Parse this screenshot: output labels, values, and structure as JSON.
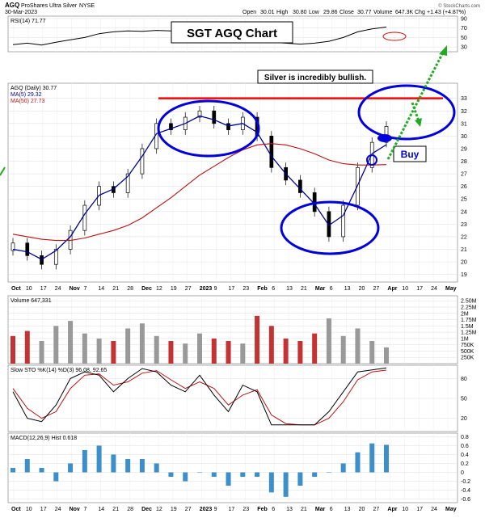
{
  "header": {
    "symbol": "AGQ",
    "name": "ProShares Ultra Silver",
    "exchange": "NYSE",
    "date": "30-Mar-2023",
    "open_label": "Open",
    "open": "30.01",
    "high_label": "High",
    "high": "30.80",
    "low_label": "Low",
    "low": "29.86",
    "close_label": "Close",
    "close": "30.77",
    "volume_label": "Volume",
    "volume": "647.3K",
    "chg_label": "Chg",
    "chg": "+1.43 (+4.87%)",
    "watermark": "© StockCharts.com"
  },
  "colors": {
    "price": "#000000",
    "ma50": "#000099",
    "ma_slow": "#bb1111",
    "rsi": "#000000",
    "annotation_blue": "#0000dd",
    "resistance": "#ff0000",
    "arrow_green": "#22aa22",
    "macd_hist": "#3d8fc9",
    "up_bar": "#999999",
    "down_bar": "#c33333"
  },
  "annotations": {
    "title": "SGT AGQ Chart",
    "silver_note": "Silver is incredibly bullish.",
    "buy": "Buy"
  },
  "chart_data": [
    {
      "type": "line",
      "panel": "rsi",
      "legend": "RSI(14) 71.77",
      "y_ticks": [
        30,
        50,
        70,
        90
      ],
      "ylim": [
        20,
        95
      ],
      "x": [
        "Oct 3",
        "Oct 10",
        "Oct 17",
        "Oct 24",
        "Oct 31",
        "Nov 7",
        "Nov 14",
        "Nov 21",
        "Nov 28",
        "Dec 5",
        "Dec 12",
        "Dec 19",
        "Dec 27",
        "Jan 3",
        "Jan 9",
        "Jan 17",
        "Jan 23",
        "Jan 30",
        "Feb 6",
        "Feb 13",
        "Feb 21",
        "Feb 27",
        "Mar 6",
        "Mar 13",
        "Mar 20",
        "Mar 27",
        "Mar 30"
      ],
      "series": [
        {
          "values": [
            35,
            38,
            34,
            40,
            45,
            50,
            58,
            62,
            64,
            63,
            65,
            64,
            66,
            64,
            65,
            62,
            63,
            60,
            40,
            38,
            36,
            38,
            42,
            50,
            62,
            68,
            72
          ]
        }
      ]
    },
    {
      "type": "candlestick",
      "panel": "price",
      "legend": "AGQ (Daily) 30.77",
      "legend_ma1": "MA(5) 29.32",
      "legend_ma2": "MA(50) 27.73",
      "y_ticks": [
        19,
        20,
        21,
        22,
        23,
        24,
        25,
        26,
        27,
        28,
        29,
        30,
        31,
        32,
        33
      ],
      "ylim": [
        18.4,
        34.2
      ],
      "x_ticks": [
        "Oct",
        "10",
        "17",
        "24",
        "Nov",
        "7",
        "14",
        "21",
        "28",
        "Dec",
        "12",
        "19",
        "27",
        "2023",
        "9",
        "17",
        "23",
        "Feb",
        "6",
        "13",
        "21",
        "Mar",
        "6",
        "13",
        "20",
        "27",
        "Apr",
        "10",
        "17",
        "24",
        "May"
      ],
      "x": [
        "Oct 3",
        "Oct 10",
        "Oct 17",
        "Oct 24",
        "Oct 31",
        "Nov 7",
        "Nov 14",
        "Nov 21",
        "Nov 28",
        "Dec 5",
        "Dec 12",
        "Dec 19",
        "Dec 27",
        "Jan 3",
        "Jan 9",
        "Jan 17",
        "Jan 23",
        "Jan 30",
        "Feb 6",
        "Feb 13",
        "Feb 21",
        "Feb 27",
        "Mar 6",
        "Mar 13",
        "Mar 20",
        "Mar 27",
        "Mar 30"
      ],
      "close": [
        21.5,
        20.5,
        19.8,
        21.0,
        22.5,
        24.5,
        26.0,
        25.5,
        27.0,
        29.0,
        31.0,
        30.5,
        31.5,
        32.0,
        31.0,
        30.5,
        31.5,
        30.0,
        27.5,
        26.5,
        25.5,
        24.0,
        22.0,
        24.5,
        27.5,
        29.5,
        30.77
      ],
      "ma_fast": [
        21.0,
        20.8,
        20.2,
        20.9,
        22.0,
        23.8,
        25.3,
        25.8,
        26.8,
        28.4,
        30.2,
        30.6,
        31.0,
        31.6,
        31.3,
        30.8,
        31.0,
        30.3,
        28.4,
        27.0,
        25.8,
        24.6,
        22.9,
        23.7,
        26.1,
        28.6,
        29.32
      ],
      "ma_slow": [
        22.2,
        22.0,
        21.8,
        21.7,
        21.7,
        21.9,
        22.2,
        22.5,
        22.9,
        23.5,
        24.3,
        25.1,
        26.0,
        26.9,
        27.6,
        28.3,
        28.9,
        29.3,
        29.4,
        29.3,
        29.0,
        28.6,
        28.1,
        27.8,
        27.7,
        27.7,
        27.73
      ],
      "resistance": 33.0
    },
    {
      "type": "bar",
      "panel": "volume",
      "legend": "Volume 647,331",
      "y_ticks": [
        "250K",
        "500K",
        "750K",
        "1M",
        "1.25M",
        "1.5M",
        "1.75M",
        "2M",
        "2.25M",
        "2.50M"
      ],
      "ylim": [
        0,
        2700000
      ],
      "x": [
        "Oct 3",
        "Oct 10",
        "Oct 17",
        "Oct 24",
        "Oct 31",
        "Nov 7",
        "Nov 14",
        "Nov 21",
        "Nov 28",
        "Dec 5",
        "Dec 12",
        "Dec 19",
        "Dec 27",
        "Jan 3",
        "Jan 9",
        "Jan 17",
        "Jan 23",
        "Jan 30",
        "Feb 6",
        "Feb 13",
        "Feb 21",
        "Feb 27",
        "Mar 6",
        "Mar 13",
        "Mar 20",
        "Mar 27",
        "Mar 30"
      ],
      "values": [
        1100000,
        1300000,
        900000,
        1500000,
        1700000,
        1200000,
        1000000,
        900000,
        1400000,
        1600000,
        1100000,
        900000,
        800000,
        1200000,
        1000000,
        900000,
        800000,
        1900000,
        1500000,
        1000000,
        900000,
        1200000,
        1800000,
        1100000,
        1400000,
        900000,
        647331
      ],
      "up": [
        false,
        false,
        true,
        true,
        true,
        true,
        true,
        false,
        true,
        true,
        true,
        false,
        true,
        true,
        false,
        false,
        true,
        false,
        false,
        false,
        false,
        false,
        true,
        true,
        true,
        true,
        true
      ]
    },
    {
      "type": "line",
      "panel": "stochastic",
      "legend": "Slow STO %K(14) %D(3) 96.08, 92.65",
      "y_ticks": [
        20,
        50,
        80
      ],
      "ylim": [
        0,
        100
      ],
      "x": [
        "Oct 3",
        "Oct 10",
        "Oct 17",
        "Oct 24",
        "Oct 31",
        "Nov 7",
        "Nov 14",
        "Nov 21",
        "Nov 28",
        "Dec 5",
        "Dec 12",
        "Dec 19",
        "Dec 27",
        "Jan 3",
        "Jan 9",
        "Jan 17",
        "Jan 23",
        "Jan 30",
        "Feb 6",
        "Feb 13",
        "Feb 21",
        "Feb 27",
        "Mar 6",
        "Mar 13",
        "Mar 20",
        "Mar 27",
        "Mar 30"
      ],
      "series": [
        {
          "values": [
            60,
            20,
            15,
            40,
            80,
            90,
            85,
            60,
            80,
            95,
            90,
            70,
            60,
            85,
            55,
            30,
            70,
            60,
            10,
            10,
            10,
            10,
            30,
            60,
            90,
            93,
            96.08
          ]
        },
        {
          "values": [
            65,
            35,
            20,
            30,
            65,
            85,
            87,
            70,
            75,
            88,
            92,
            78,
            65,
            75,
            65,
            40,
            55,
            63,
            25,
            12,
            10,
            10,
            20,
            45,
            78,
            90,
            92.65
          ]
        }
      ]
    },
    {
      "type": "bar",
      "panel": "macd",
      "legend": "MACD(12,26,9) Hist 0.618",
      "y_ticks": [
        -0.6,
        -0.4,
        -0.2,
        0,
        0.2,
        0.4,
        0.6,
        0.8
      ],
      "ylim": [
        -0.68,
        0.88
      ],
      "x": [
        "Oct 3",
        "Oct 10",
        "Oct 17",
        "Oct 24",
        "Oct 31",
        "Nov 7",
        "Nov 14",
        "Nov 21",
        "Nov 28",
        "Dec 5",
        "Dec 12",
        "Dec 19",
        "Dec 27",
        "Jan 3",
        "Jan 9",
        "Jan 17",
        "Jan 23",
        "Jan 30",
        "Feb 6",
        "Feb 13",
        "Feb 21",
        "Feb 27",
        "Mar 6",
        "Mar 13",
        "Mar 20",
        "Mar 27",
        "Mar 30"
      ],
      "values": [
        0.1,
        0.3,
        0.1,
        -0.2,
        0.2,
        0.5,
        0.6,
        0.4,
        0.3,
        0.3,
        0.2,
        -0.1,
        -0.2,
        0.0,
        -0.1,
        -0.3,
        -0.1,
        -0.1,
        -0.45,
        -0.55,
        -0.3,
        -0.1,
        0.0,
        0.2,
        0.45,
        0.65,
        0.618
      ]
    }
  ]
}
